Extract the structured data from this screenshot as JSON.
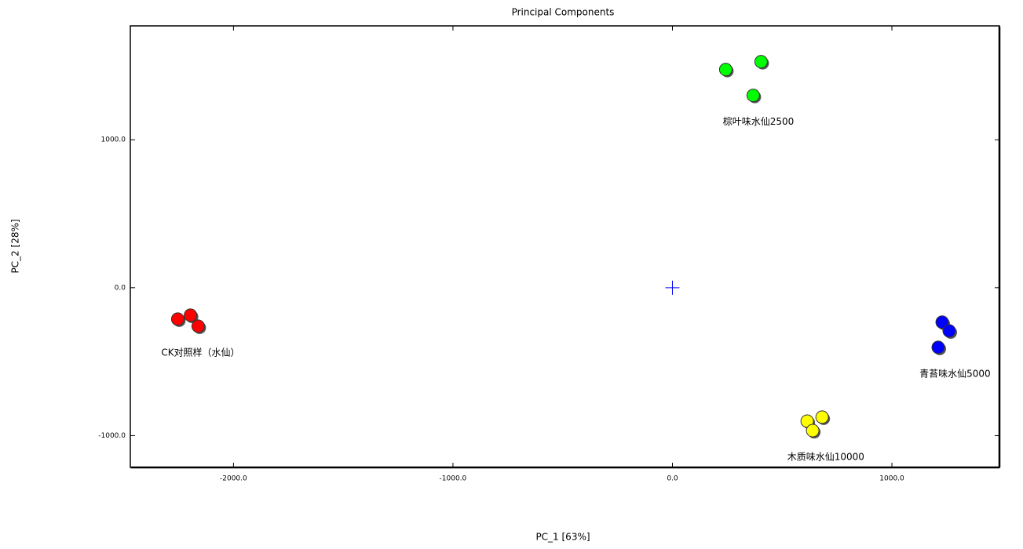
{
  "chart_data": {
    "type": "scatter",
    "title": "Principal Components",
    "x_label": "PC_1 [63%]",
    "y_label": "PC_2 [28%]",
    "xlim": [
      -2470,
      1490
    ],
    "ylim": [
      -1215,
      1770
    ],
    "xticks": [
      {
        "value": -2000,
        "label": "-2000.0"
      },
      {
        "value": -1000,
        "label": "-1000.0"
      },
      {
        "value": 0,
        "label": "0.0"
      },
      {
        "value": 1000,
        "label": "1000.0"
      }
    ],
    "yticks": [
      {
        "value": -1000,
        "label": "-1000.0"
      },
      {
        "value": 0,
        "label": "0.0"
      },
      {
        "value": 1000,
        "label": "1000.0"
      }
    ],
    "series": [
      {
        "name": "CK对照样（水仙）",
        "color": "#ff0000",
        "x": [
          -2254,
          -2196,
          -2161
        ],
        "values": [
          -212,
          -186,
          -260
        ]
      },
      {
        "name": "棕叶味水仙2500",
        "color": "#00ff00",
        "x": [
          243,
          404,
          368
        ],
        "values": [
          1475,
          1528,
          1300
        ]
      },
      {
        "name": "青苔味水仙5000",
        "color": "#0000ff",
        "x": [
          1229,
          1261,
          1211
        ],
        "values": [
          -233,
          -292,
          -403
        ]
      },
      {
        "name": "木质味水仙10000",
        "color": "#ffff00",
        "x": [
          614,
          682,
          639
        ],
        "values": [
          -902,
          -875,
          -966
        ]
      }
    ]
  }
}
